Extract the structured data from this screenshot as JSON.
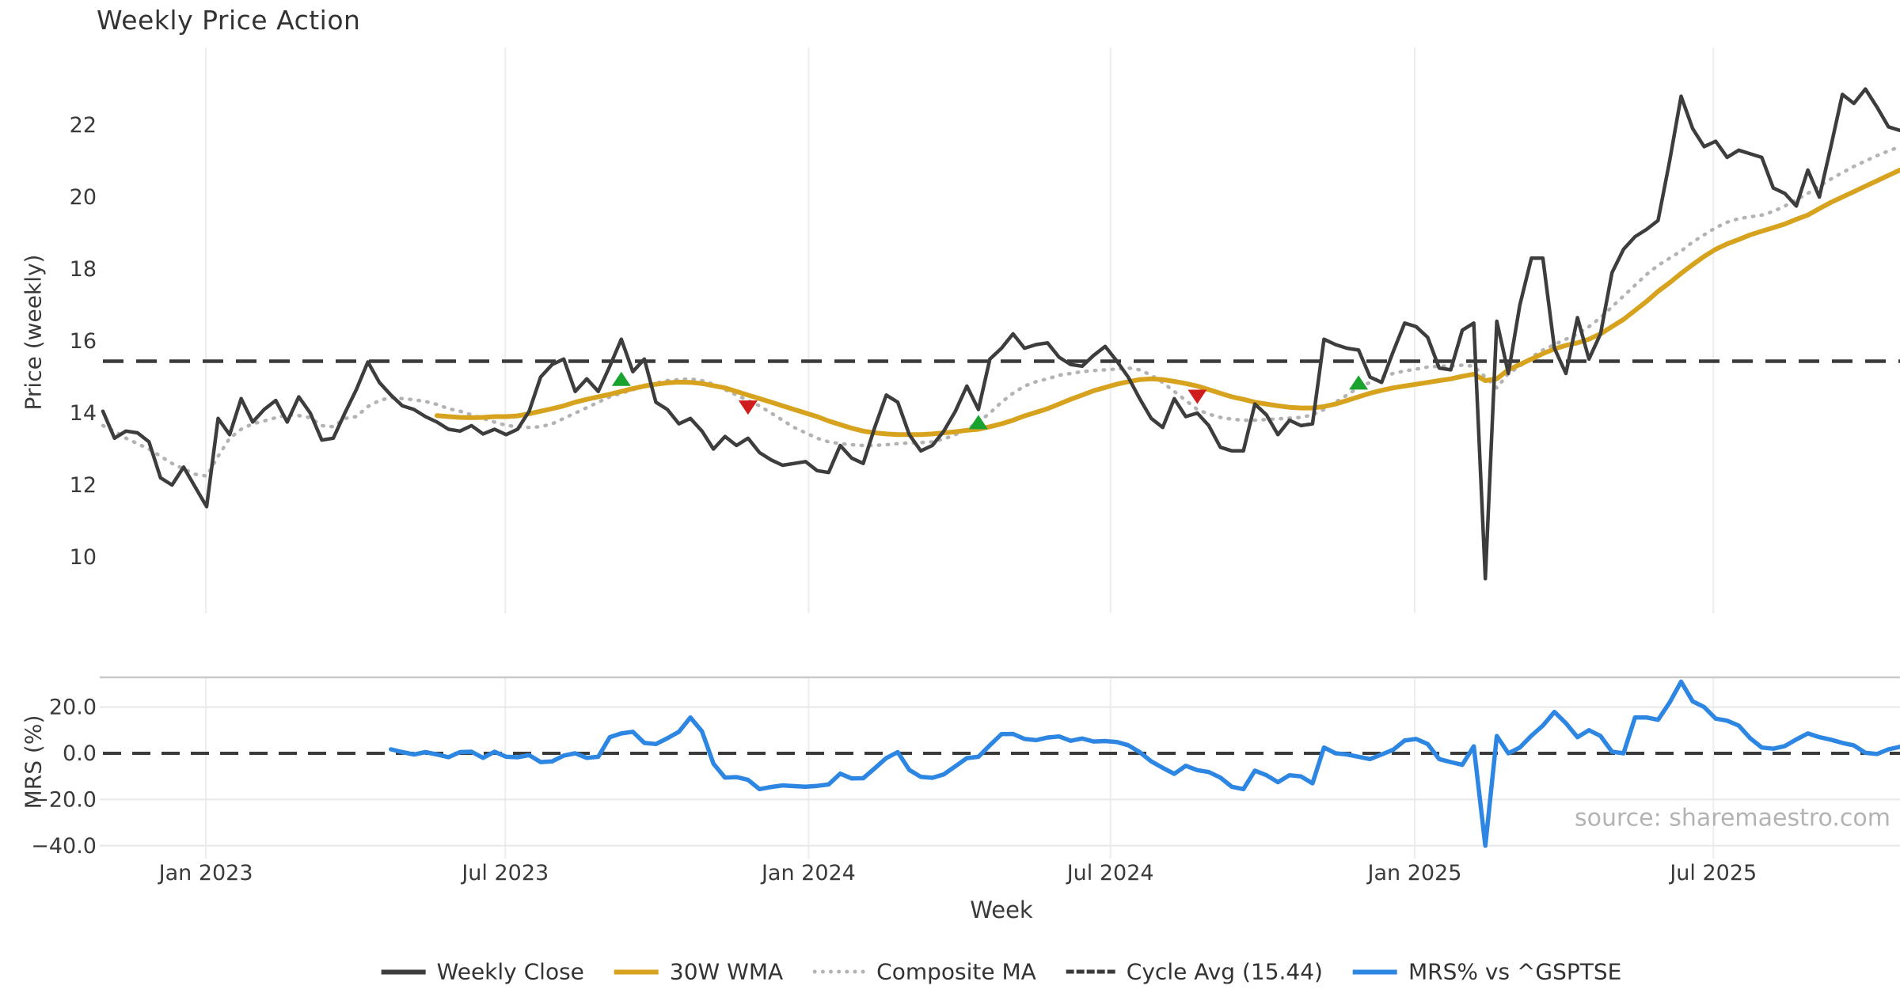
{
  "title": "Weekly Price Action",
  "xlabel": "Week",
  "source_note": "source: sharemaestro.com",
  "price_panel": {
    "ylabel": "Price (weekly)"
  },
  "mrs_panel": {
    "ylabel": "MRS (%)"
  },
  "colors": {
    "weekly_close": "#3d3d3d",
    "wma30": "#d7a21e",
    "composite": "#b3b3b3",
    "cycle_avg": "#3a3a3a",
    "mrs": "#2d87e2",
    "buy_marker": "#1aa22f",
    "sell_marker": "#cf1d1d",
    "grid": "#ededed",
    "panel_border": "#c9c9c9",
    "tick_text": "#3a3a3a"
  },
  "legend": [
    {
      "label": "Weekly Close",
      "swatch": "solid",
      "color_key": "weekly_close"
    },
    {
      "label": "30W WMA",
      "swatch": "solid",
      "color_key": "wma30"
    },
    {
      "label": "Composite MA",
      "swatch": "dotted",
      "color_key": "composite"
    },
    {
      "label": "Cycle Avg (15.44)",
      "swatch": "dashed",
      "color_key": "cycle_avg"
    },
    {
      "label": "MRS% vs ^GSPTSE",
      "swatch": "solid",
      "color_key": "mrs"
    }
  ],
  "chart_data": [
    {
      "type": "line",
      "panel": "price",
      "title": "Weekly Price Action",
      "ylabel": "Price (weekly)",
      "x_unit": "week index (week 0 = late Oct 2022, ~14.55px/week)",
      "ylim": [
        8.4,
        24.2
      ],
      "yticks": [
        22,
        20,
        18,
        16,
        14,
        12,
        10
      ],
      "grid": "vertical-only",
      "legend_position": "bottom-center",
      "cycle_avg": 15.44,
      "xticks": [
        {
          "week": 8.94,
          "label": "Jan 2023"
        },
        {
          "week": 34.93,
          "label": "Jul 2023"
        },
        {
          "week": 61.26,
          "label": "Jan 2024"
        },
        {
          "week": 87.46,
          "label": "Jul 2024"
        },
        {
          "week": 113.87,
          "label": "Jan 2025"
        },
        {
          "week": 139.8,
          "label": "Jul 2025"
        }
      ],
      "series": [
        {
          "name": "Weekly Close",
          "color_key": "weekly_close",
          "style": "solid",
          "width": 4.5,
          "start_week": 0,
          "values": [
            14.05,
            13.3,
            13.5,
            13.45,
            13.2,
            12.2,
            12.0,
            12.5,
            11.95,
            11.4,
            13.85,
            13.4,
            14.4,
            13.75,
            14.1,
            14.35,
            13.75,
            14.45,
            14.0,
            13.25,
            13.3,
            14.0,
            14.65,
            15.42,
            14.85,
            14.5,
            14.2,
            14.1,
            13.9,
            13.75,
            13.55,
            13.5,
            13.65,
            13.42,
            13.55,
            13.4,
            13.55,
            14.05,
            15.0,
            15.35,
            15.5,
            14.6,
            14.95,
            14.6,
            15.3,
            16.05,
            15.15,
            15.5,
            14.3,
            14.1,
            13.7,
            13.85,
            13.5,
            13.0,
            13.35,
            13.1,
            13.3,
            12.9,
            12.7,
            12.55,
            12.6,
            12.65,
            12.4,
            12.35,
            13.1,
            12.75,
            12.6,
            13.6,
            14.5,
            14.3,
            13.4,
            12.95,
            13.1,
            13.5,
            14.05,
            14.75,
            14.1,
            15.5,
            15.8,
            16.2,
            15.8,
            15.9,
            15.95,
            15.55,
            15.35,
            15.3,
            15.6,
            15.85,
            15.45,
            15.0,
            14.4,
            13.85,
            13.6,
            14.4,
            13.9,
            14.0,
            13.65,
            13.05,
            12.95,
            12.95,
            14.25,
            13.95,
            13.4,
            13.8,
            13.65,
            13.7,
            16.05,
            15.9,
            15.8,
            15.75,
            15.0,
            14.85,
            15.7,
            16.5,
            16.4,
            16.1,
            15.25,
            15.2,
            16.3,
            16.5,
            9.4,
            16.55,
            15.1,
            17.0,
            18.3,
            18.3,
            15.8,
            15.1,
            16.65,
            15.5,
            16.2,
            17.9,
            18.55,
            18.9,
            19.1,
            19.35,
            21.0,
            22.8,
            21.9,
            21.4,
            21.55,
            21.1,
            21.3,
            21.2,
            21.1,
            20.25,
            20.1,
            19.75,
            20.75,
            20.0,
            21.4,
            22.85,
            22.6,
            23.0,
            22.5,
            21.95,
            21.85
          ]
        },
        {
          "name": "30W WMA",
          "color_key": "wma30",
          "style": "solid",
          "width": 6,
          "start_week": 29,
          "values": [
            13.93,
            13.9,
            13.88,
            13.87,
            13.88,
            13.9,
            13.9,
            13.92,
            13.98,
            14.05,
            14.12,
            14.2,
            14.3,
            14.38,
            14.45,
            14.52,
            14.6,
            14.68,
            14.75,
            14.8,
            14.84,
            14.86,
            14.85,
            14.82,
            14.76,
            14.7,
            14.6,
            14.5,
            14.4,
            14.3,
            14.2,
            14.1,
            14.0,
            13.9,
            13.78,
            13.68,
            13.58,
            13.5,
            13.45,
            13.42,
            13.4,
            13.4,
            13.4,
            13.42,
            13.45,
            13.48,
            13.52,
            13.55,
            13.62,
            13.7,
            13.8,
            13.92,
            14.02,
            14.12,
            14.25,
            14.38,
            14.5,
            14.62,
            14.71,
            14.8,
            14.87,
            14.93,
            14.95,
            14.93,
            14.88,
            14.82,
            14.75,
            14.65,
            14.55,
            14.45,
            14.38,
            14.3,
            14.25,
            14.2,
            14.16,
            14.14,
            14.14,
            14.18,
            14.25,
            14.35,
            14.45,
            14.55,
            14.63,
            14.7,
            14.75,
            14.8,
            14.85,
            14.9,
            14.95,
            15.02,
            15.08,
            14.9,
            14.95,
            15.2,
            15.35,
            15.5,
            15.65,
            15.78,
            15.88,
            15.95,
            16.05,
            16.2,
            16.4,
            16.6,
            16.85,
            17.1,
            17.38,
            17.62,
            17.88,
            18.12,
            18.35,
            18.55,
            18.7,
            18.82,
            18.95,
            19.05,
            19.15,
            19.25,
            19.38,
            19.5,
            19.68,
            19.85,
            20.0,
            20.15,
            20.3,
            20.45,
            20.6,
            20.75
          ]
        },
        {
          "name": "Composite MA",
          "color_key": "composite",
          "style": "dotted",
          "width": 4.5,
          "start_week": 0,
          "values": [
            13.65,
            13.5,
            13.3,
            13.15,
            13.0,
            12.8,
            12.6,
            12.45,
            12.3,
            12.25,
            12.8,
            13.3,
            13.55,
            13.7,
            13.78,
            13.87,
            13.95,
            13.93,
            13.87,
            13.65,
            13.62,
            13.85,
            13.9,
            14.18,
            14.35,
            14.43,
            14.4,
            14.37,
            14.32,
            14.24,
            14.12,
            14.05,
            13.95,
            13.85,
            13.75,
            13.66,
            13.62,
            13.6,
            13.62,
            13.7,
            13.85,
            14.0,
            14.15,
            14.3,
            14.45,
            14.55,
            14.65,
            14.75,
            14.83,
            14.9,
            14.93,
            14.95,
            14.9,
            14.8,
            14.65,
            14.5,
            14.35,
            14.2,
            14.0,
            13.8,
            13.6,
            13.45,
            13.3,
            13.2,
            13.15,
            13.12,
            13.1,
            13.1,
            13.12,
            13.15,
            13.17,
            13.18,
            13.2,
            13.28,
            13.4,
            13.55,
            13.75,
            14.0,
            14.3,
            14.55,
            14.75,
            14.87,
            14.95,
            15.05,
            15.1,
            15.15,
            15.18,
            15.2,
            15.22,
            15.25,
            15.2,
            15.05,
            14.85,
            14.6,
            14.35,
            14.1,
            13.97,
            13.88,
            13.83,
            13.8,
            13.8,
            13.82,
            13.84,
            13.86,
            13.88,
            13.95,
            14.1,
            14.3,
            14.5,
            14.71,
            14.85,
            15.0,
            15.1,
            15.17,
            15.22,
            15.28,
            15.3,
            15.3,
            15.33,
            15.3,
            15.0,
            14.7,
            15.1,
            15.3,
            15.55,
            15.75,
            15.9,
            16.05,
            16.2,
            16.4,
            16.65,
            16.95,
            17.25,
            17.55,
            17.85,
            18.1,
            18.3,
            18.5,
            18.75,
            18.95,
            19.15,
            19.3,
            19.4,
            19.45,
            19.5,
            19.6,
            19.75,
            19.92,
            20.1,
            20.3,
            20.5,
            20.68,
            20.85,
            21.0,
            21.15,
            21.28,
            21.4
          ]
        }
      ],
      "signals": {
        "buy": [
          {
            "week": 45,
            "price": 14.95
          },
          {
            "week": 76,
            "price": 13.75
          },
          {
            "week": 109,
            "price": 14.85
          }
        ],
        "sell": [
          {
            "week": 56,
            "price": 14.15
          },
          {
            "week": 95,
            "price": 14.45
          }
        ]
      }
    },
    {
      "type": "line",
      "panel": "mrs",
      "ylabel": "MRS (%)",
      "ylim": [
        -45,
        33
      ],
      "yticks": [
        {
          "value": 20,
          "label": "20.0"
        },
        {
          "value": 0,
          "label": "0.0"
        },
        {
          "value": -20,
          "label": "−20.0"
        },
        {
          "value": -40,
          "label": "−40.0"
        }
      ],
      "zero_line_dashed": 0,
      "grid": "horizontal-and-vertical",
      "series": [
        {
          "name": "MRS% vs ^GSPTSE",
          "color_key": "mrs",
          "style": "solid",
          "width": 5.5,
          "start_week": 25,
          "values": [
            1.7,
            0.5,
            -0.5,
            0.5,
            -0.5,
            -1.7,
            0.5,
            0.7,
            -2.0,
            0.7,
            -1.5,
            -1.7,
            -0.8,
            -3.8,
            -3.5,
            -1.0,
            0.0,
            -2.0,
            -1.5,
            7.0,
            8.6,
            9.3,
            4.5,
            4.0,
            6.5,
            9.3,
            15.5,
            9.5,
            -4.5,
            -10.5,
            -10.3,
            -11.5,
            -15.5,
            -14.6,
            -13.9,
            -14.2,
            -14.5,
            -14.1,
            -13.5,
            -8.8,
            -10.9,
            -10.8,
            -6.5,
            -2.1,
            0.5,
            -7.2,
            -10.2,
            -10.6,
            -9.1,
            -5.6,
            -2.1,
            -1.5,
            3.5,
            8.3,
            8.4,
            6.2,
            5.7,
            6.8,
            7.3,
            5.4,
            6.4,
            5.1,
            5.3,
            4.9,
            3.5,
            0.5,
            -3.5,
            -6.3,
            -8.9,
            -5.4,
            -7.3,
            -8.1,
            -10.5,
            -14.5,
            -15.5,
            -7.5,
            -9.5,
            -12.5,
            -9.5,
            -10.0,
            -13.0,
            2.5,
            0.0,
            -0.5,
            -1.5,
            -2.5,
            -0.5,
            1.5,
            5.5,
            6.2,
            4.0,
            -2.5,
            -3.8,
            -5.0,
            3.0,
            -40.0,
            7.5,
            0.0,
            2.5,
            7.6,
            12.0,
            17.9,
            13.0,
            7.0,
            10.0,
            7.5,
            0.7,
            0.0,
            15.5,
            15.5,
            14.5,
            22.0,
            31.0,
            22.5,
            20.0,
            15.0,
            14.1,
            12.0,
            6.5,
            2.5,
            2.0,
            3.1,
            6.0,
            8.6,
            7.0,
            5.9,
            4.5,
            3.4,
            0.2,
            -0.3,
            1.7,
            2.8
          ]
        }
      ]
    }
  ]
}
